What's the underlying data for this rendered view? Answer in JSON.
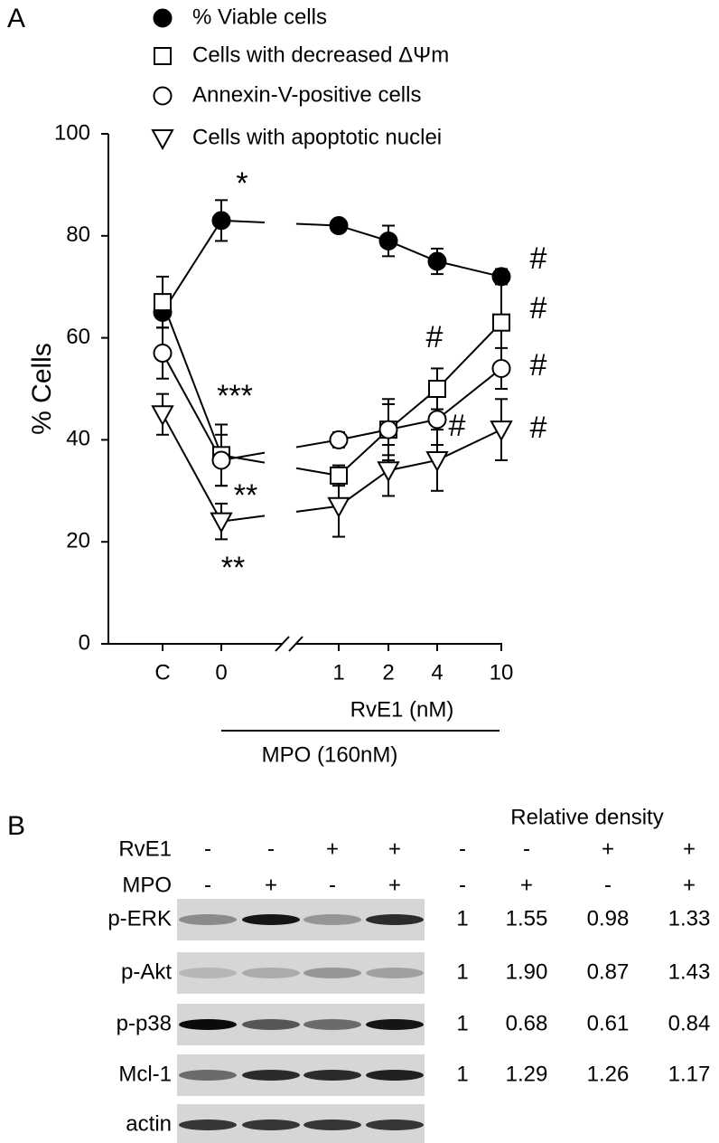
{
  "chart_data": {
    "type": "line",
    "panel": "A",
    "categories": [
      "C",
      "0",
      "1",
      "2",
      "4",
      "10"
    ],
    "ylabel": "% Cells",
    "xlabel": "RvE1 (nM)",
    "xlabel2": "MPO (160nM)",
    "ylim": [
      0,
      100
    ],
    "yticks": [
      0,
      20,
      40,
      60,
      80,
      100
    ],
    "series": [
      {
        "name": "% Viable cells",
        "color": "#000000",
        "marker": "circle",
        "filled": true,
        "values": [
          65,
          83,
          82,
          79,
          75,
          72
        ],
        "errors": [
          3,
          4,
          1,
          3,
          2.5,
          1.5
        ]
      },
      {
        "name": "Cells with decreased ΔΨm",
        "color": "#000000",
        "marker": "square",
        "filled": false,
        "values": [
          67,
          37,
          33,
          42,
          50,
          63
        ],
        "errors": [
          5,
          6,
          2,
          6,
          4,
          8
        ]
      },
      {
        "name": "Annexin-V-positive cells",
        "color": "#000000",
        "marker": "circle",
        "filled": false,
        "values": [
          57,
          36,
          40,
          42,
          44,
          54
        ],
        "errors": [
          5,
          5,
          1.5,
          5,
          5,
          4
        ]
      },
      {
        "name": "Cells with apoptotic nuclei",
        "color": "#000000",
        "marker": "triangle-down",
        "filled": false,
        "values": [
          45,
          24,
          27,
          34,
          36,
          42
        ],
        "errors": [
          4,
          3.5,
          6,
          5,
          6,
          6
        ]
      }
    ],
    "annotations": [
      "*",
      "***",
      "**",
      "**",
      "#",
      "#",
      "#",
      "#",
      "#",
      "#"
    ]
  },
  "blot": {
    "panel": "B",
    "header": "Relative density",
    "conditions": [
      {
        "label": "RvE1",
        "signs": [
          "-",
          "-",
          "+",
          "+"
        ],
        "density_signs": [
          "-",
          "-",
          "+",
          "+"
        ]
      },
      {
        "label": "MPO",
        "signs": [
          "-",
          "+",
          "-",
          "+"
        ],
        "density_signs": [
          "-",
          "+",
          "-",
          "+"
        ]
      }
    ],
    "rows": [
      {
        "label": "p-ERK",
        "density": [
          "1",
          "1.55",
          "0.98",
          "1.33"
        ]
      },
      {
        "label": "p-Akt",
        "density": [
          "1",
          "1.90",
          "0.87",
          "1.43"
        ]
      },
      {
        "label": "p-p38",
        "density": [
          "1",
          "0.68",
          "0.61",
          "0.84"
        ]
      },
      {
        "label": "Mcl-1",
        "density": [
          "1",
          "1.29",
          "1.26",
          "1.17"
        ]
      },
      {
        "label": "actin"
      }
    ]
  }
}
